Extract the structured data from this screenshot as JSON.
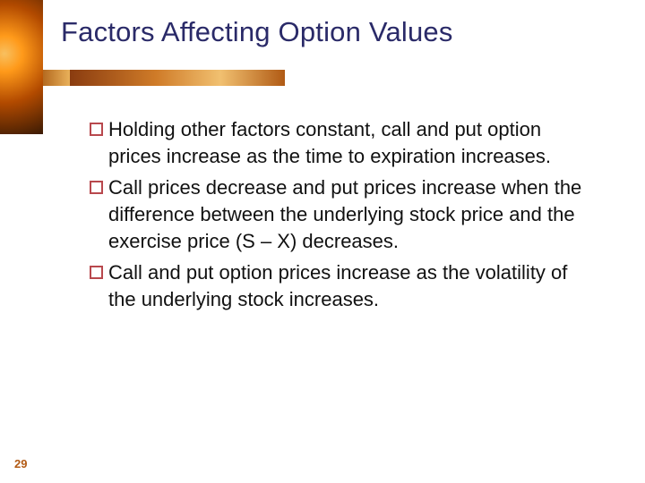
{
  "slide": {
    "title": "Factors Affecting Option Values",
    "page_number": "29",
    "bullets": [
      "Holding other factors constant, call and put option prices increase as the time to expiration increases.",
      "Call prices decrease and put prices increase when the difference between the underlying stock price and the exercise price (S – X) decreases.",
      "Call and put option prices increase as the volatility of the underlying stock increases."
    ]
  },
  "style": {
    "title_color": "#2a2a68",
    "title_fontsize": 31,
    "body_fontsize": 22,
    "body_color": "#111111",
    "bullet_border_color": "#b8484d",
    "bullet_border_width": 2.4,
    "page_number_color": "#b25a14",
    "page_number_fontsize": 13,
    "accent_gradient": [
      "#8a3c10",
      "#cf7b28",
      "#f1c070",
      "#b05a14"
    ],
    "decor_gradient": [
      "#f8c060",
      "#ff9a1a",
      "#b24a00",
      "#3a1a04"
    ],
    "background_color": "#ffffff",
    "slide_width": 720,
    "slide_height": 540
  }
}
